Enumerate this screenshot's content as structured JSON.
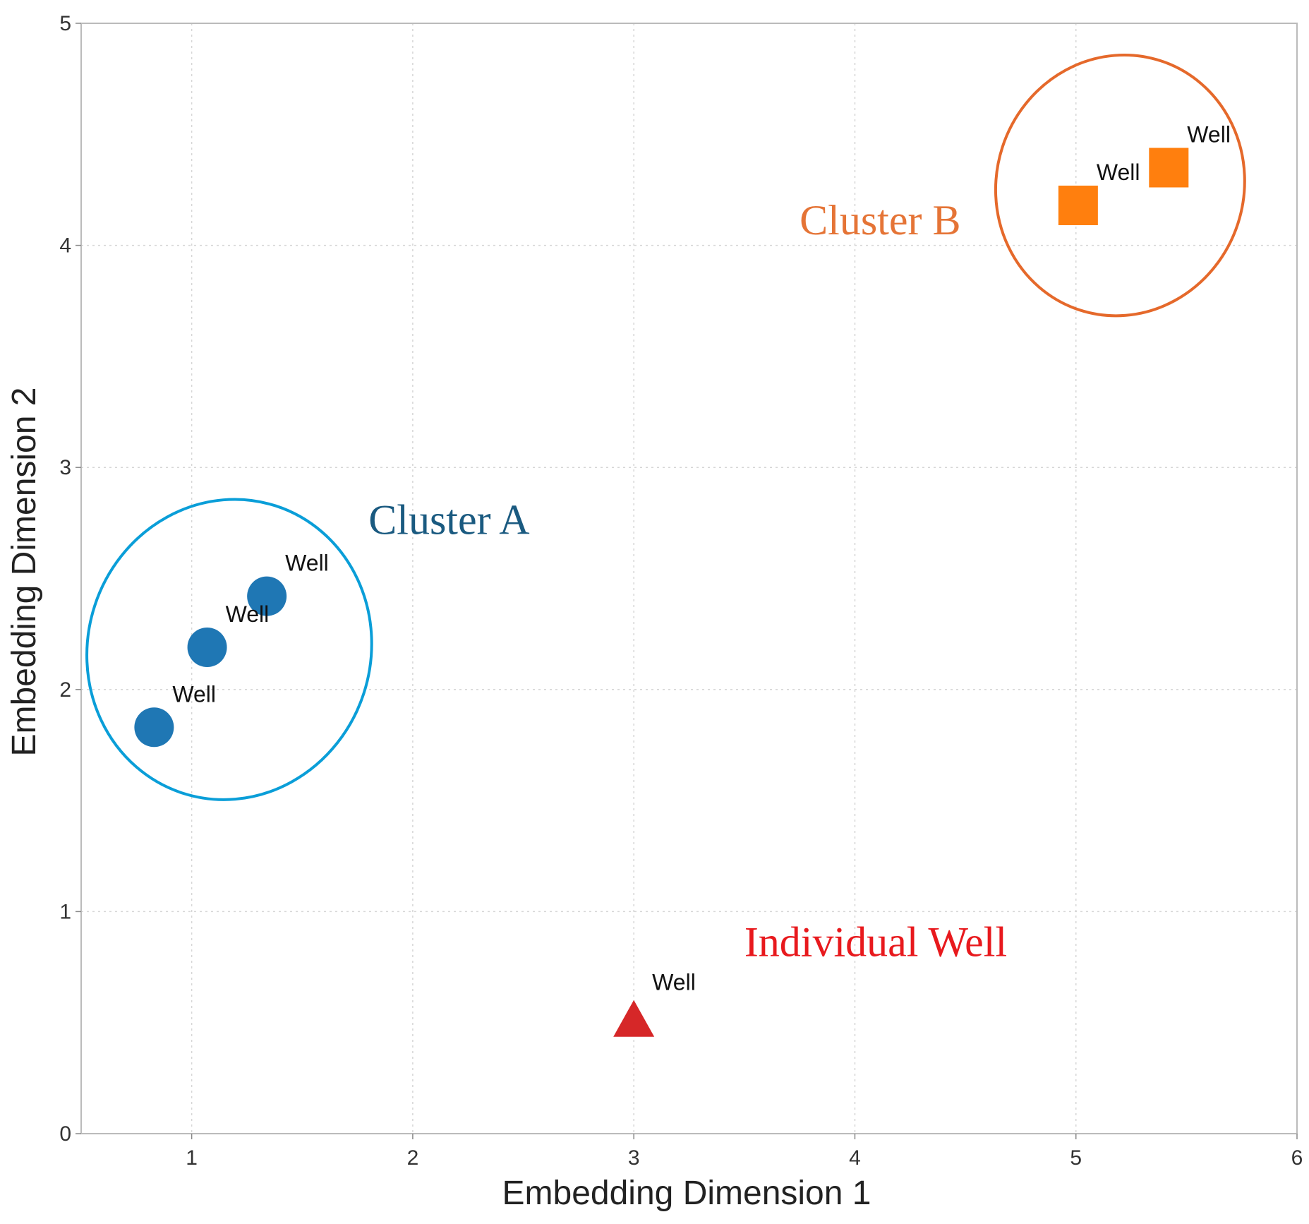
{
  "chart_data": {
    "type": "scatter",
    "title": "",
    "xlabel": "Embedding Dimension 1",
    "ylabel": "Embedding Dimension 2",
    "xlim": [
      0.5,
      6
    ],
    "ylim": [
      0,
      5
    ],
    "xticks": [
      1,
      2,
      3,
      4,
      5,
      6
    ],
    "yticks": [
      0,
      1,
      2,
      3,
      4,
      5
    ],
    "grid": true,
    "series": [
      {
        "name": "Cluster A",
        "marker": "circle",
        "color": "#1f77b4",
        "points": [
          {
            "x": 0.83,
            "y": 1.83,
            "label": "Well"
          },
          {
            "x": 1.07,
            "y": 2.19,
            "label": "Well"
          },
          {
            "x": 1.34,
            "y": 2.42,
            "label": "Well"
          }
        ]
      },
      {
        "name": "Cluster B",
        "marker": "square",
        "color": "#ff7f0e",
        "points": [
          {
            "x": 5.01,
            "y": 4.18,
            "label": "Well"
          },
          {
            "x": 5.42,
            "y": 4.35,
            "label": "Well"
          }
        ]
      },
      {
        "name": "Individual Well",
        "marker": "triangle",
        "color": "#d62728",
        "points": [
          {
            "x": 3.0,
            "y": 0.5,
            "label": "Well"
          }
        ]
      }
    ],
    "annotations": [
      {
        "text": "Cluster A",
        "x": 1.8,
        "y": 2.7,
        "color": "#1a5a80"
      },
      {
        "text": "Cluster B",
        "x": 3.75,
        "y": 4.05,
        "color": "#e57436"
      },
      {
        "text": "Individual Well",
        "x": 3.5,
        "y": 0.8,
        "color": "#e8191d"
      }
    ],
    "cluster_ellipses": [
      {
        "name": "Cluster A",
        "color": "#0a9ed8",
        "cx": 1.17,
        "cy": 2.18,
        "rx": 0.64,
        "ry": 0.68
      },
      {
        "name": "Cluster B",
        "color": "#e5692b",
        "cx": 5.2,
        "cy": 4.27,
        "rx": 0.56,
        "ry": 0.59
      }
    ]
  }
}
